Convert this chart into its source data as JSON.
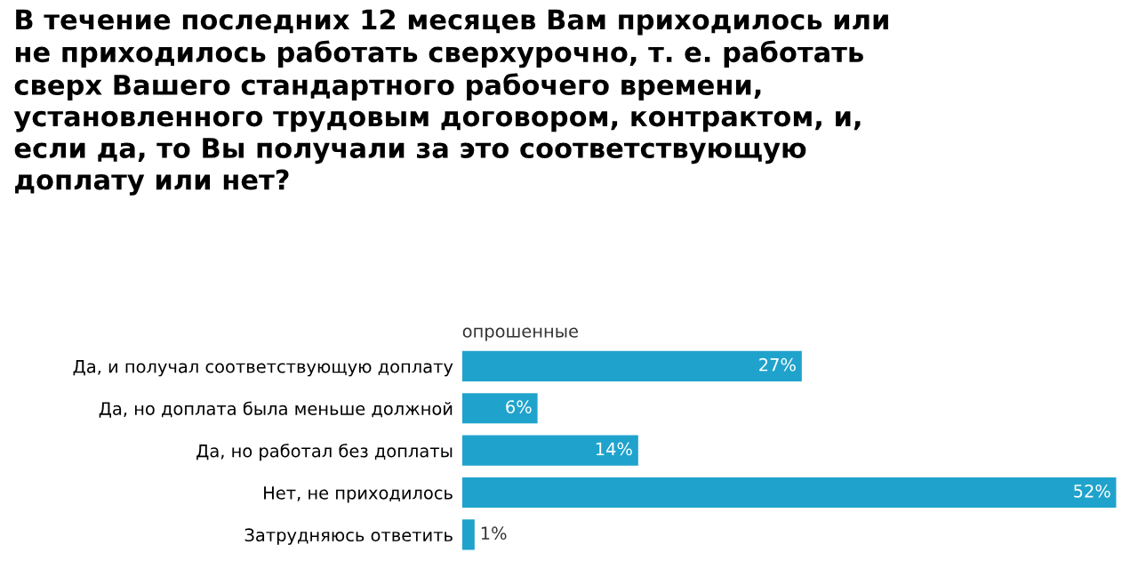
{
  "chart_data": {
    "type": "bar",
    "orientation": "horizontal",
    "title": "В течение последних 12 месяцев Вам приходилось или\nне приходилось работать сверхурочно, т. е. работать\nсверх Вашего стандартного рабочего времени,\nустановленного трудовым договором, контрактом, и,\nесли да, то Вы получали за это соответствующую\nдоплату или нет?",
    "categories": [
      "Да, и получал соответствующую доплату",
      "Да, но доплата была меньше должной",
      "Да, но работал без доплаты",
      "Нет, не приходилось",
      "Затрудняюсь ответить"
    ],
    "series": [
      {
        "name": "опрошенные",
        "color": "#1fa3cc",
        "values": [
          27,
          6,
          14,
          52,
          1
        ],
        "value_labels": [
          "27%",
          "6%",
          "14%",
          "52%",
          "1%"
        ]
      }
    ],
    "tick_labels": "y",
    "grid": false,
    "legend": false
  }
}
